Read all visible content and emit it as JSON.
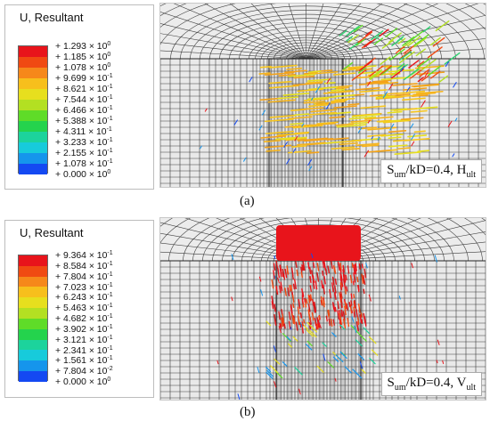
{
  "panel_a": {
    "legend_title": "U, Resultant",
    "ticks": [
      {
        "sign": "+",
        "m": "1.293",
        "e": "0"
      },
      {
        "sign": "+",
        "m": "1.185",
        "e": "0"
      },
      {
        "sign": "+",
        "m": "1.078",
        "e": "0"
      },
      {
        "sign": "+",
        "m": "9.699",
        "e": "-1"
      },
      {
        "sign": "+",
        "m": "8.621",
        "e": "-1"
      },
      {
        "sign": "+",
        "m": "7.544",
        "e": "-1"
      },
      {
        "sign": "+",
        "m": "6.466",
        "e": "-1"
      },
      {
        "sign": "+",
        "m": "5.388",
        "e": "-1"
      },
      {
        "sign": "+",
        "m": "4.311",
        "e": "-1"
      },
      {
        "sign": "+",
        "m": "3.233",
        "e": "-1"
      },
      {
        "sign": "+",
        "m": "2.155",
        "e": "-1"
      },
      {
        "sign": "+",
        "m": "1.078",
        "e": "-1"
      },
      {
        "sign": "+",
        "m": "0.000",
        "e": "0"
      }
    ],
    "colors": [
      "#e8141b",
      "#f04a12",
      "#f6881a",
      "#f7bf1c",
      "#e7df1e",
      "#b3e022",
      "#5fdc28",
      "#24d34d",
      "#1cd39c",
      "#17cbdb",
      "#1595ec",
      "#1449f2"
    ],
    "callout": {
      "pre": "S",
      "sub1": "um",
      "mid": "/kD=0.4, H",
      "sub2": "ult"
    },
    "caption": "(a)"
  },
  "panel_b": {
    "legend_title": "U, Resultant",
    "ticks": [
      {
        "sign": "+",
        "m": "9.364",
        "e": "-1"
      },
      {
        "sign": "+",
        "m": "8.584",
        "e": "-1"
      },
      {
        "sign": "+",
        "m": "7.804",
        "e": "-1"
      },
      {
        "sign": "+",
        "m": "7.023",
        "e": "-1"
      },
      {
        "sign": "+",
        "m": "6.243",
        "e": "-1"
      },
      {
        "sign": "+",
        "m": "5.463",
        "e": "-1"
      },
      {
        "sign": "+",
        "m": "4.682",
        "e": "-1"
      },
      {
        "sign": "+",
        "m": "3.902",
        "e": "-1"
      },
      {
        "sign": "+",
        "m": "3.121",
        "e": "-1"
      },
      {
        "sign": "+",
        "m": "2.341",
        "e": "-1"
      },
      {
        "sign": "+",
        "m": "1.561",
        "e": "-1"
      },
      {
        "sign": "+",
        "m": "7.804",
        "e": "-2"
      },
      {
        "sign": "+",
        "m": "0.000",
        "e": "0"
      }
    ],
    "colors": [
      "#e8141b",
      "#f04a12",
      "#f6881a",
      "#f7bf1c",
      "#e7df1e",
      "#b3e022",
      "#5fdc28",
      "#24d34d",
      "#1cd39c",
      "#17cbdb",
      "#1595ec",
      "#1449f2"
    ],
    "callout": {
      "pre": "S",
      "sub1": "um",
      "mid": "/kD=0.4, V",
      "sub2": "ult"
    },
    "caption": "(b)"
  }
}
